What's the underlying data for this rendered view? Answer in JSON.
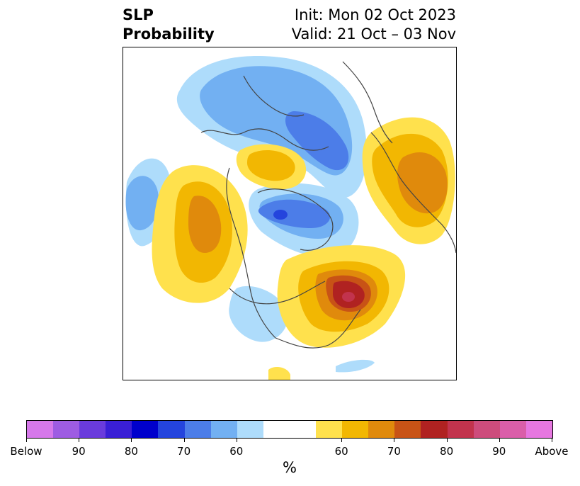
{
  "title": {
    "left_line1": "SLP",
    "left_line2": "Probability",
    "right_line1": "Init: Mon 02 Oct 2023",
    "right_line2": "Valid: 21 Oct – 03 Nov"
  },
  "colorbar": {
    "unit": "%",
    "colors": [
      "#d678ea",
      "#9e5ce2",
      "#6a3bdc",
      "#3a1fd6",
      "#0000cc",
      "#2444dd",
      "#4c7de8",
      "#72b0f2",
      "#aedcfb",
      "#ffffff",
      "#ffffff",
      "#ffe14d",
      "#f2b702",
      "#e08a0c",
      "#c85316",
      "#b02221",
      "#c2334d",
      "#cd4c7c",
      "#da5ea9",
      "#e677e0"
    ],
    "tick_labels": [
      "Below",
      "90",
      "80",
      "70",
      "60",
      "60",
      "70",
      "80",
      "90",
      "Above"
    ]
  },
  "legend_meaning": {
    "blue_shades": "Below",
    "warm_shades": "Above"
  }
}
